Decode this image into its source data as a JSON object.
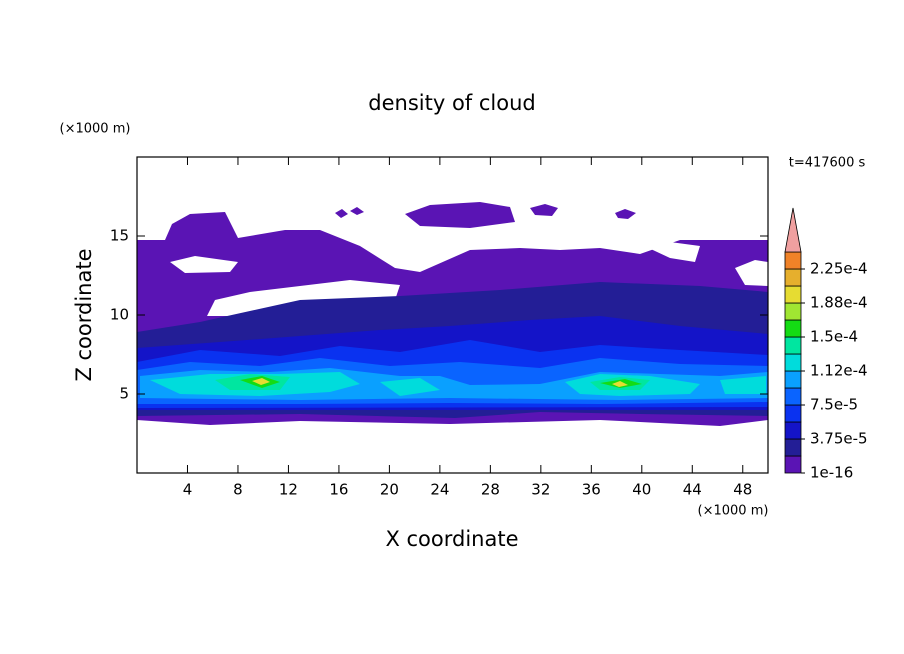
{
  "chart_data": {
    "type": "contour",
    "title": "density of cloud",
    "xlabel": "X coordinate",
    "ylabel": "Z coordinate",
    "xunit": "(×1000 m)",
    "yunit": "(×1000 m)",
    "time_label": "t=417600 s",
    "xlim": [
      0,
      50
    ],
    "xticks": [
      4,
      8,
      12,
      16,
      20,
      24,
      28,
      32,
      36,
      40,
      44,
      48
    ],
    "ylim": [
      0,
      20
    ],
    "yticks": [
      5,
      10,
      15
    ],
    "colorbar": {
      "levels": [
        1e-16,
        1.875e-05,
        3.75e-05,
        5.625e-05,
        7.5e-05,
        9.375e-05,
        0.0001125,
        0.00013125,
        0.00015,
        0.00016875,
        0.0001875,
        0.00020625,
        0.000225,
        0.00024375
      ],
      "colors": [
        "#5a14b4",
        "#231e96",
        "#1414c8",
        "#0a32f0",
        "#0a64ff",
        "#0aa0ff",
        "#00dcdc",
        "#00e6a0",
        "#14dc14",
        "#a0e632",
        "#e6dc32",
        "#e6af2d",
        "#f08228",
        "#fa3c3c"
      ],
      "extend_color": "#f0a0a0",
      "ticks": [
        1e-16,
        {
          "value": 3.75e-05,
          "label": "3.75e-5"
        },
        {
          "value": 7.5e-05,
          "label": "7.5e-5"
        },
        {
          "value": 0.0001125,
          "label": "1.12e-4"
        },
        {
          "value": 0.00015,
          "label": "1.5e-4"
        },
        {
          "value": 0.0001875,
          "label": "1.88e-4"
        },
        {
          "value": 0.000225,
          "label": "2.25e-4"
        }
      ]
    }
  }
}
